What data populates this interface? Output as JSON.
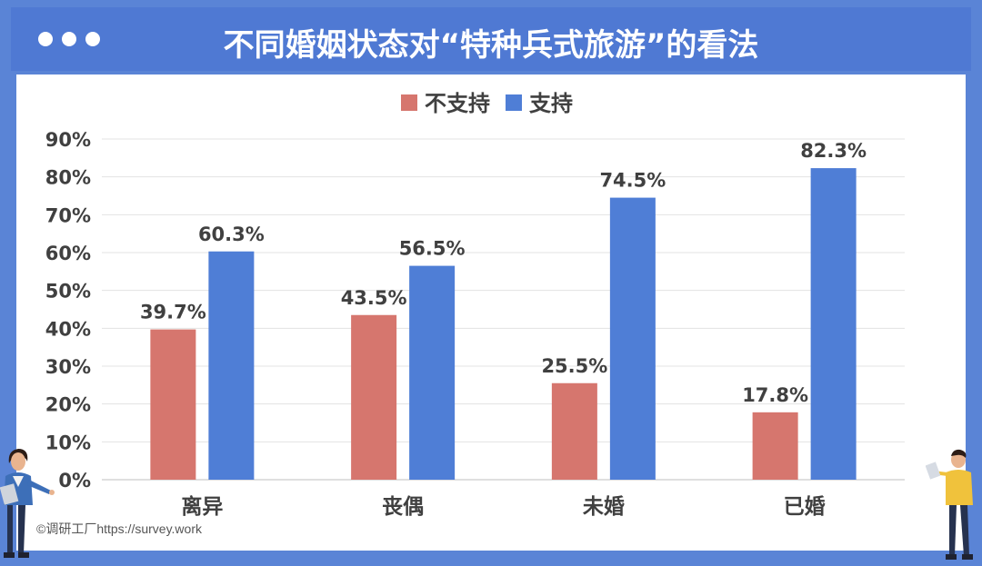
{
  "header": {
    "title": "不同婚姻状态对“特种兵式旅游”的看法"
  },
  "watermark": "©调研工厂https://survey.work",
  "colors": {
    "frame": "#5a84d6",
    "header": "#4f79d3",
    "not_support": "#d6766e",
    "support": "#4f7ed6"
  },
  "chart_data": {
    "type": "bar",
    "title": "",
    "xlabel": "",
    "ylabel": "",
    "categories": [
      "离异",
      "丧偶",
      "未婚",
      "已婚"
    ],
    "series": [
      {
        "name": "不支持",
        "values": [
          39.7,
          43.5,
          25.5,
          17.8
        ],
        "labels": [
          "39.7%",
          "43.5%",
          "25.5%",
          "17.8%"
        ]
      },
      {
        "name": "支持",
        "values": [
          60.3,
          56.5,
          74.5,
          82.3
        ],
        "labels": [
          "60.3%",
          "56.5%",
          "74.5%",
          "82.3%"
        ]
      }
    ],
    "yticks": [
      "0%",
      "10%",
      "20%",
      "30%",
      "40%",
      "50%",
      "60%",
      "70%",
      "80%",
      "90%"
    ],
    "ylim": [
      0,
      90
    ],
    "grid": true,
    "legend_position": "top-center"
  }
}
